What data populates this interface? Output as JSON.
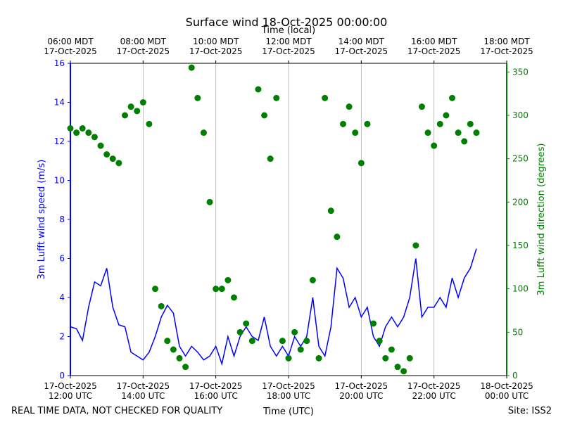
{
  "chart_data": {
    "type": "line",
    "title": "Surface wind 18-Oct-2025 00:00:00",
    "x2label": "Time (local)",
    "xlabel": "Time (UTC)",
    "ylabel": "3m Lufft wind speed (m/s)",
    "y2label": "3m Lufft wind direction (degrees)",
    "footnote_left": "REAL TIME DATA, NOT CHECKED FOR QUALITY",
    "footnote_right": "Site: ISS2",
    "grid": true,
    "xlim": [
      "2025-10-17 12:00",
      "2025-10-18 00:00"
    ],
    "xticks": [
      {
        "value": "2025-10-17 12:00",
        "label": "17-Oct-2025\n12:00 UTC"
      },
      {
        "value": "2025-10-17 14:00",
        "label": "17-Oct-2025\n14:00 UTC"
      },
      {
        "value": "2025-10-17 16:00",
        "label": "17-Oct-2025\n16:00 UTC"
      },
      {
        "value": "2025-10-17 18:00",
        "label": "17-Oct-2025\n18:00 UTC"
      },
      {
        "value": "2025-10-17 20:00",
        "label": "17-Oct-2025\n20:00 UTC"
      },
      {
        "value": "2025-10-17 22:00",
        "label": "17-Oct-2025\n22:00 UTC"
      },
      {
        "value": "2025-10-18 00:00",
        "label": "18-Oct-2025\n00:00 UTC"
      }
    ],
    "x2ticks": [
      {
        "value": "2025-10-17 12:00",
        "label": "06:00 MDT\n17-Oct-2025"
      },
      {
        "value": "2025-10-17 14:00",
        "label": "08:00 MDT\n17-Oct-2025"
      },
      {
        "value": "2025-10-17 16:00",
        "label": "10:00 MDT\n17-Oct-2025"
      },
      {
        "value": "2025-10-17 18:00",
        "label": "12:00 MDT\n17-Oct-2025"
      },
      {
        "value": "2025-10-17 20:00",
        "label": "14:00 MDT\n17-Oct-2025"
      },
      {
        "value": "2025-10-17 22:00",
        "label": "16:00 MDT\n17-Oct-2025"
      },
      {
        "value": "2025-10-18 00:00",
        "label": "18:00 MDT\n17-Oct-2025"
      }
    ],
    "ylim": [
      0,
      16
    ],
    "yticks": [
      0,
      2,
      4,
      6,
      8,
      10,
      12,
      14,
      16
    ],
    "y2lim": [
      0,
      360
    ],
    "y2ticks": [
      0,
      50,
      100,
      150,
      200,
      250,
      300,
      350
    ],
    "x": [
      "2025-10-17 12:00",
      "2025-10-17 12:10",
      "2025-10-17 12:20",
      "2025-10-17 12:30",
      "2025-10-17 12:40",
      "2025-10-17 12:50",
      "2025-10-17 13:00",
      "2025-10-17 13:10",
      "2025-10-17 13:20",
      "2025-10-17 13:30",
      "2025-10-17 13:40",
      "2025-10-17 13:50",
      "2025-10-17 14:00",
      "2025-10-17 14:10",
      "2025-10-17 14:20",
      "2025-10-17 14:30",
      "2025-10-17 14:40",
      "2025-10-17 14:50",
      "2025-10-17 15:00",
      "2025-10-17 15:10",
      "2025-10-17 15:20",
      "2025-10-17 15:30",
      "2025-10-17 15:40",
      "2025-10-17 15:50",
      "2025-10-17 16:00",
      "2025-10-17 16:10",
      "2025-10-17 16:20",
      "2025-10-17 16:30",
      "2025-10-17 16:40",
      "2025-10-17 16:50",
      "2025-10-17 17:00",
      "2025-10-17 17:10",
      "2025-10-17 17:20",
      "2025-10-17 17:30",
      "2025-10-17 17:40",
      "2025-10-17 17:50",
      "2025-10-17 18:00",
      "2025-10-17 18:10",
      "2025-10-17 18:20",
      "2025-10-17 18:30",
      "2025-10-17 18:40",
      "2025-10-17 18:50",
      "2025-10-17 19:00",
      "2025-10-17 19:10",
      "2025-10-17 19:20",
      "2025-10-17 19:30",
      "2025-10-17 19:40",
      "2025-10-17 19:50",
      "2025-10-17 20:00",
      "2025-10-17 20:10",
      "2025-10-17 20:20",
      "2025-10-17 20:30",
      "2025-10-17 20:40",
      "2025-10-17 20:50",
      "2025-10-17 21:00",
      "2025-10-17 21:10",
      "2025-10-17 21:20",
      "2025-10-17 21:30",
      "2025-10-17 21:40",
      "2025-10-17 21:50",
      "2025-10-17 22:00",
      "2025-10-17 22:10",
      "2025-10-17 22:20",
      "2025-10-17 22:30",
      "2025-10-17 22:40",
      "2025-10-17 22:50",
      "2025-10-17 23:00",
      "2025-10-17 23:10"
    ],
    "series": [
      {
        "type": "line",
        "axis": "y",
        "color": "#0000ff",
        "values": [
          2.5,
          2.4,
          1.8,
          3.5,
          4.8,
          4.6,
          5.5,
          3.5,
          2.6,
          2.5,
          1.2,
          1.0,
          0.8,
          1.2,
          2.0,
          3.0,
          3.6,
          3.2,
          1.5,
          1.0,
          1.5,
          1.2,
          0.8,
          1.0,
          1.5,
          0.6,
          2.0,
          1.0,
          2.0,
          2.5,
          2.0,
          1.8,
          3.0,
          1.5,
          1.0,
          1.5,
          1.0,
          2.0,
          1.5,
          2.0,
          4.0,
          1.5,
          1.0,
          2.5,
          5.5,
          5.0,
          3.5,
          4.0,
          3.0,
          3.5,
          2.0,
          1.5,
          2.5,
          3.0,
          2.5,
          3.0,
          4.0,
          6.0,
          3.0,
          3.5,
          3.5,
          4.0,
          3.5,
          5.0,
          4.0,
          5.0,
          5.5,
          6.5
        ]
      },
      {
        "type": "scatter",
        "axis": "y2",
        "color": "#008000",
        "values": [
          285,
          280,
          285,
          280,
          275,
          265,
          255,
          250,
          245,
          300,
          310,
          305,
          315,
          290,
          100,
          80,
          40,
          30,
          20,
          10,
          355,
          320,
          280,
          200,
          100,
          100,
          110,
          90,
          50,
          60,
          40,
          330,
          300,
          250,
          320,
          40,
          20,
          50,
          30,
          40,
          110,
          20,
          320,
          190,
          160,
          290,
          310,
          280,
          245,
          290,
          60,
          40,
          20,
          30,
          10,
          5,
          20,
          150,
          310,
          280,
          265,
          290,
          300,
          320,
          280,
          270,
          290,
          280
        ]
      }
    ]
  }
}
